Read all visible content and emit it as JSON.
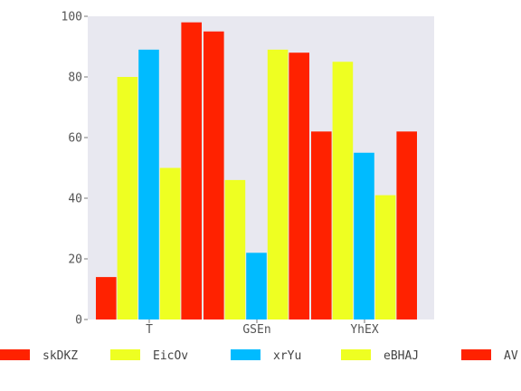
{
  "chart_data": {
    "type": "bar",
    "categories": [
      "T",
      "GSEn",
      "YhEX"
    ],
    "series": [
      {
        "name": "skDKZ",
        "color": "#ff2200",
        "values": [
          14,
          95,
          62
        ]
      },
      {
        "name": "EicOv",
        "color": "#eeff22",
        "values": [
          80,
          46,
          85
        ]
      },
      {
        "name": "xrYu",
        "color": "#00bbff",
        "values": [
          89,
          22,
          55
        ]
      },
      {
        "name": "eBHAJ",
        "color": "#eeff22",
        "values": [
          50,
          89,
          41
        ]
      },
      {
        "name": "AV",
        "color": "#ff2200",
        "values": [
          98,
          88,
          62
        ]
      }
    ],
    "yticks": [
      0,
      20,
      40,
      60,
      80,
      100
    ],
    "ylim": [
      0,
      100
    ],
    "title": "",
    "xlabel": "",
    "ylabel": "",
    "grid": false,
    "legend_position": "bottom",
    "plot_background": "#e8e8f0"
  }
}
